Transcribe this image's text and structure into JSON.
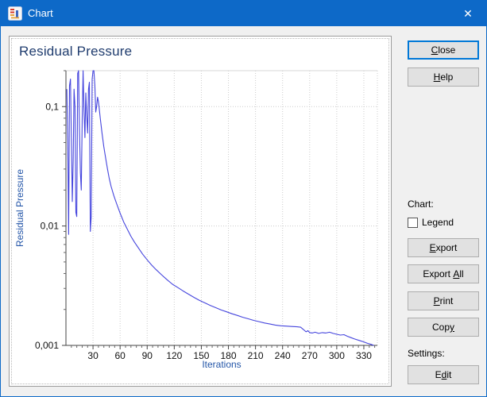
{
  "window": {
    "title": "Chart",
    "close_glyph": "✕"
  },
  "sidebar": {
    "close": {
      "pre": "",
      "key": "C",
      "post": "lose"
    },
    "help": {
      "pre": "",
      "key": "H",
      "post": "elp"
    },
    "chart_group_label": "Chart:",
    "legend_label": "Legend",
    "legend_checked": false,
    "export": {
      "pre": "",
      "key": "E",
      "post": "xport"
    },
    "export_all": {
      "pre": "Export ",
      "key": "A",
      "post": "ll"
    },
    "print": {
      "pre": "",
      "key": "P",
      "post": "rint"
    },
    "copy": {
      "pre": "Cop",
      "key": "y",
      "post": ""
    },
    "settings_group_label": "Settings:",
    "edit": {
      "pre": "E",
      "key": "d",
      "post": "it"
    }
  },
  "chart_data": {
    "type": "line",
    "title": "Residual Pressure",
    "xlabel": "Iterations",
    "ylabel": "Residual Pressure",
    "y_scale": "log",
    "xlim": [
      0,
      345
    ],
    "ylim": [
      0.001,
      0.2
    ],
    "x_ticks": [
      30,
      60,
      90,
      120,
      150,
      180,
      210,
      240,
      270,
      300,
      330
    ],
    "x_tick_labels": [
      "30",
      "60",
      "90",
      "120",
      "150",
      "180",
      "210",
      "240",
      "270",
      "300",
      "330"
    ],
    "x_minor_step": 6,
    "y_ticks": [
      0.1,
      0.01,
      0.001
    ],
    "y_tick_labels": [
      "0,1",
      "0,01",
      "0,001"
    ],
    "grid": true,
    "legend_position": "none",
    "line_color": "#4545dd",
    "series": [
      {
        "name": "Residual Pressure",
        "points": [
          [
            1,
            0.14
          ],
          [
            2,
            0.05
          ],
          [
            3,
            0.0085
          ],
          [
            4,
            0.15
          ],
          [
            5,
            0.17
          ],
          [
            6,
            0.055
          ],
          [
            7,
            0.016
          ],
          [
            8,
            0.035
          ],
          [
            9,
            0.14
          ],
          [
            10,
            0.1
          ],
          [
            11,
            0.013
          ],
          [
            12,
            0.012
          ],
          [
            13,
            0.19
          ],
          [
            14,
            0.21
          ],
          [
            15,
            0.065
          ],
          [
            16,
            0.028
          ],
          [
            17,
            0.02
          ],
          [
            18,
            0.08
          ],
          [
            19,
            0.2
          ],
          [
            20,
            0.095
          ],
          [
            21,
            0.055
          ],
          [
            22,
            0.13
          ],
          [
            23,
            0.085
          ],
          [
            24,
            0.06
          ],
          [
            25,
            0.14
          ],
          [
            26,
            0.16
          ],
          [
            27,
            0.009
          ],
          [
            28,
            0.012
          ],
          [
            29,
            0.17
          ],
          [
            30,
            0.25
          ],
          [
            31,
            0.22
          ],
          [
            32,
            0.15
          ],
          [
            33,
            0.09
          ],
          [
            34,
            0.1
          ],
          [
            35,
            0.12
          ],
          [
            36,
            0.11
          ],
          [
            37,
            0.095
          ],
          [
            38,
            0.08
          ],
          [
            40,
            0.06
          ],
          [
            42,
            0.046
          ],
          [
            44,
            0.037
          ],
          [
            46,
            0.03
          ],
          [
            48,
            0.025
          ],
          [
            50,
            0.0215
          ],
          [
            53,
            0.018
          ],
          [
            56,
            0.0155
          ],
          [
            60,
            0.0128
          ],
          [
            64,
            0.0108
          ],
          [
            68,
            0.0094
          ],
          [
            72,
            0.0082
          ],
          [
            76,
            0.0073
          ],
          [
            80,
            0.0066
          ],
          [
            85,
            0.0058
          ],
          [
            90,
            0.0052
          ],
          [
            95,
            0.0047
          ],
          [
            100,
            0.0043
          ],
          [
            106,
            0.0039
          ],
          [
            112,
            0.00355
          ],
          [
            118,
            0.00325
          ],
          [
            124,
            0.00305
          ],
          [
            130,
            0.00285
          ],
          [
            136,
            0.00268
          ],
          [
            142,
            0.00252
          ],
          [
            148,
            0.00238
          ],
          [
            154,
            0.00227
          ],
          [
            160,
            0.00216
          ],
          [
            166,
            0.00207
          ],
          [
            172,
            0.00198
          ],
          [
            178,
            0.00191
          ],
          [
            184,
            0.00184
          ],
          [
            190,
            0.00178
          ],
          [
            196,
            0.00172
          ],
          [
            202,
            0.00167
          ],
          [
            208,
            0.00162
          ],
          [
            214,
            0.00158
          ],
          [
            220,
            0.00154
          ],
          [
            226,
            0.00151
          ],
          [
            232,
            0.00148
          ],
          [
            238,
            0.00146
          ],
          [
            244,
            0.00145
          ],
          [
            250,
            0.00144
          ],
          [
            256,
            0.00143
          ],
          [
            260,
            0.00142
          ],
          [
            263,
            0.00136
          ],
          [
            266,
            0.0013
          ],
          [
            268,
            0.00133
          ],
          [
            270,
            0.00128
          ],
          [
            273,
            0.00127
          ],
          [
            276,
            0.00129
          ],
          [
            280,
            0.00126
          ],
          [
            284,
            0.00128
          ],
          [
            288,
            0.00127
          ],
          [
            292,
            0.00129
          ],
          [
            296,
            0.00126
          ],
          [
            300,
            0.00124
          ],
          [
            304,
            0.00122
          ],
          [
            308,
            0.00123
          ],
          [
            312,
            0.00119
          ],
          [
            316,
            0.00116
          ],
          [
            320,
            0.00113
          ],
          [
            325,
            0.0011
          ],
          [
            330,
            0.00107
          ],
          [
            334,
            0.00104
          ],
          [
            338,
            0.00102
          ],
          [
            341,
            0.001
          ]
        ]
      }
    ]
  }
}
